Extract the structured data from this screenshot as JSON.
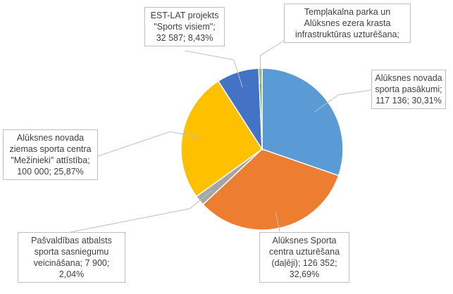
{
  "chart_data": {
    "type": "pie",
    "title": "",
    "start_angle": "top",
    "direction": "clockwise",
    "slices": [
      {
        "label": "Alūksnes novada sporta pasākumi",
        "value": 117136,
        "percent": 30.31,
        "color": "#5B9BD5",
        "text": "Alūksnes novada\nsporta pasākumi;\n117 136; 30,31%"
      },
      {
        "label": "Alūksnes Sporta centra uzturēšana (daļēji)",
        "value": 126352,
        "percent": 32.69,
        "color": "#ED7D31",
        "text": "Alūksnes Sporta\ncentra uzturēšana\n(daļēji); 126 352;\n32,69%"
      },
      {
        "label": "Pašvaldības atbalsts sporta sasniegumu veicināšana",
        "value": 7900,
        "percent": 2.04,
        "color": "#A5A5A5",
        "text": "Pašvaldības atbalsts\nsporta sasniegumu\nveicināšana; 7 900;\n2,04%"
      },
      {
        "label": "Alūksnes novada ziemas sporta centra \"Mežinieki\" attīstība",
        "value": 100000,
        "percent": 25.87,
        "color": "#FFC000",
        "text": "Alūksnes novada\nziemas sporta centra\n\"Mežinieki\" attīstība;\n100 000; 25,87%"
      },
      {
        "label": "EST-LAT projekts \"Sports visiem\"",
        "value": 32587,
        "percent": 8.43,
        "color": "#4472C4",
        "text": "EST-LAT projekts\n\"Sports visiem\";\n32 587; 8,43%"
      },
      {
        "label": "Templakalna parka un Alūksnes ezera krasta infrastruktūras uzturēšana",
        "value": 2500,
        "percent": 0.66,
        "color": "#70AD47",
        "text": "Tempļakalna parka un\nAlūksnes ezera krasta\ninfrastruktūras uzturēšana;"
      }
    ]
  }
}
